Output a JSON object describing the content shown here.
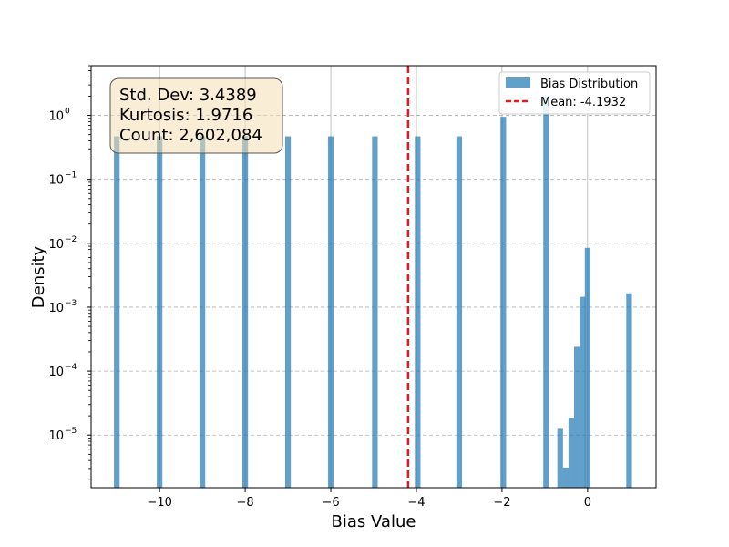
{
  "chart_data": {
    "type": "bar",
    "xlabel": "Bias Value",
    "ylabel": "Density",
    "xlim": [
      -11.6,
      1.6
    ],
    "ylim": [
      1.5e-06,
      6
    ],
    "yscale": "log",
    "grid": true,
    "legend_placement": "top-right",
    "bin_width": 0.132,
    "xticks": [
      {
        "value": -10,
        "label": "−10"
      },
      {
        "value": -8,
        "label": "−8"
      },
      {
        "value": -6,
        "label": "−6"
      },
      {
        "value": -4,
        "label": "−4"
      },
      {
        "value": -2,
        "label": "−2"
      },
      {
        "value": 0,
        "label": "0"
      }
    ],
    "yticks": [
      {
        "value": 1e-05,
        "base": "10",
        "exp": "−5"
      },
      {
        "value": 0.0001,
        "base": "10",
        "exp": "−4"
      },
      {
        "value": 0.001,
        "base": "10",
        "exp": "−3"
      },
      {
        "value": 0.01,
        "base": "10",
        "exp": "−2"
      },
      {
        "value": 0.1,
        "base": "10",
        "exp": "−1"
      },
      {
        "value": 1,
        "base": "10",
        "exp": "0"
      }
    ],
    "series": [
      {
        "name": "Bias Distribution",
        "color": "#1f77b4",
        "bars": [
          {
            "x": -11.0,
            "y": 0.47
          },
          {
            "x": -10.0,
            "y": 0.47
          },
          {
            "x": -9.0,
            "y": 0.47
          },
          {
            "x": -8.0,
            "y": 0.47
          },
          {
            "x": -7.0,
            "y": 0.47
          },
          {
            "x": -6.0,
            "y": 0.47
          },
          {
            "x": -4.97,
            "y": 0.47
          },
          {
            "x": -3.97,
            "y": 0.47
          },
          {
            "x": -3.0,
            "y": 0.47
          },
          {
            "x": -1.97,
            "y": 0.95
          },
          {
            "x": -0.97,
            "y": 2.0
          },
          {
            "x": -0.64,
            "y": 1.25e-05
          },
          {
            "x": -0.51,
            "y": 3.1e-06
          },
          {
            "x": -0.38,
            "y": 1.85e-05
          },
          {
            "x": -0.25,
            "y": 0.00024
          },
          {
            "x": -0.12,
            "y": 0.00145
          },
          {
            "x": 0.0,
            "y": 0.0085
          },
          {
            "x": 0.97,
            "y": 0.00165
          }
        ]
      }
    ],
    "mean_line": {
      "name": "Mean: -4.1932",
      "x": -4.1932,
      "color": "#e41a1c"
    },
    "stats_box": {
      "lines": [
        "Std. Dev: 3.4389",
        "Kurtosis: 1.9716",
        "Count: 2,602,084"
      ],
      "background": "#f5deb3"
    }
  }
}
